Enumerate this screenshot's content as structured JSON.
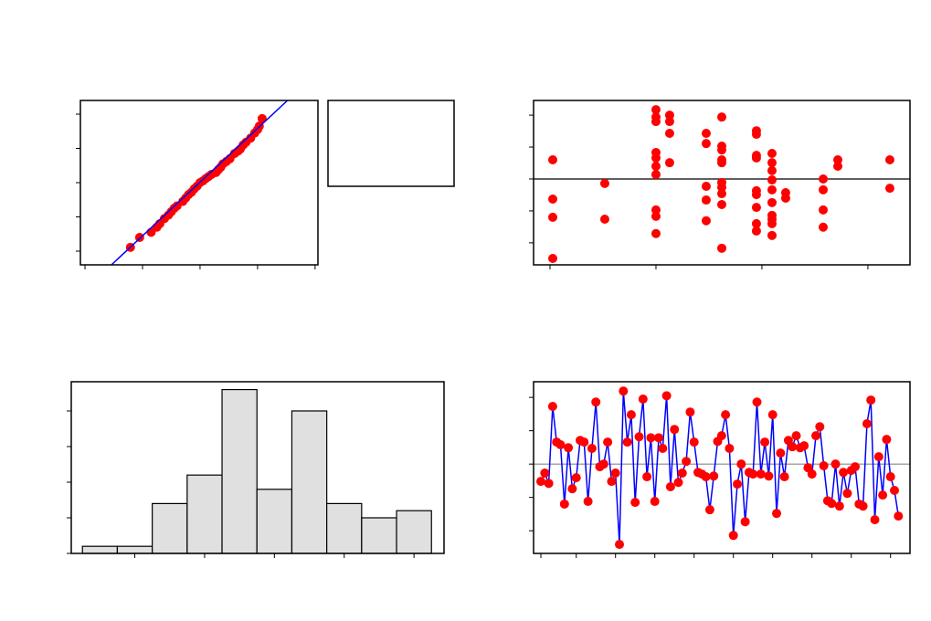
{
  "chart_data": [
    {
      "type": "scatter",
      "xlim": [
        -2.08,
        2.05
      ],
      "ylim": [
        -2.4,
        2.4
      ],
      "xticks": [
        -2,
        -1,
        0,
        1,
        2
      ],
      "yticks": [
        -2,
        -1,
        0,
        1,
        2
      ],
      "series": [
        {
          "color": "#ff0000",
          "style": "points",
          "x": [
            -1.21,
            -1.05,
            -0.85,
            -0.75,
            -0.7,
            -0.62,
            -0.55,
            -0.5,
            -0.45,
            -0.4,
            -0.3,
            -0.25,
            -0.2,
            -0.15,
            -0.1,
            -0.05,
            0,
            0.05,
            0.1,
            0.15,
            0.2,
            0.28,
            0.32,
            0.36,
            0.4,
            0.46,
            0.52,
            0.6,
            0.66,
            0.7,
            0.75,
            0.8,
            0.88,
            0.95,
            1.0,
            1.03,
            1.08
          ],
          "values": [
            -1.89,
            -1.6,
            -1.45,
            -1.3,
            -1.2,
            -1.05,
            -0.95,
            -0.85,
            -0.75,
            -0.68,
            -0.55,
            -0.45,
            -0.35,
            -0.28,
            -0.18,
            -0.1,
            0,
            0.05,
            0.12,
            0.18,
            0.24,
            0.3,
            0.38,
            0.45,
            0.55,
            0.62,
            0.7,
            0.85,
            0.92,
            0.98,
            1.1,
            1.18,
            1.3,
            1.45,
            1.55,
            1.65,
            1.87
          ]
        },
        {
          "color": "#0000ff",
          "style": "line",
          "x": [
            -1.54,
            1.52
          ],
          "values": [
            -2.4,
            2.4
          ]
        }
      ]
    },
    {
      "type": "scatter",
      "xlim": [
        8.45,
        43.97
      ],
      "ylim": [
        -2.69,
        2.46
      ],
      "xticks": [
        10,
        20,
        30,
        40
      ],
      "yticks": [
        -2,
        -1,
        0,
        1,
        2
      ],
      "refline": 0,
      "refline_color": "#000000",
      "series": [
        {
          "color": "#ff0000",
          "style": "points",
          "x": [
            10.26,
            10.26,
            10.26,
            10.26,
            15.17,
            15.17,
            20,
            20,
            20,
            20,
            20,
            20,
            20,
            20,
            20,
            20,
            21.29,
            21.29,
            21.29,
            21.29,
            24.74,
            24.74,
            24.74,
            24.74,
            24.74,
            26.21,
            26.21,
            26.21,
            26.21,
            26.21,
            26.21,
            26.21,
            26.21,
            26.21,
            26.21,
            29.48,
            29.48,
            29.48,
            29.48,
            29.48,
            29.48,
            29.48,
            29.48,
            29.48,
            30.95,
            30.95,
            30.95,
            30.95,
            30.95,
            30.95,
            30.95,
            30.95,
            30.95,
            30.95,
            32.24,
            32.24,
            35.78,
            35.78,
            35.78,
            35.78,
            37.16,
            37.16,
            42.07,
            42.07
          ],
          "values": [
            0.6,
            -0.63,
            -1.2,
            -2.49,
            -0.14,
            -1.26,
            2.17,
            1.94,
            1.8,
            0.83,
            0.66,
            0.4,
            0.14,
            -0.97,
            -1.17,
            -1.71,
            2.0,
            1.8,
            1.43,
            0.51,
            1.43,
            1.11,
            -0.23,
            -0.66,
            -1.31,
            1.94,
            1.03,
            0.91,
            0.6,
            0.51,
            -0.11,
            -0.26,
            -0.46,
            -0.8,
            -2.17,
            1.51,
            1.4,
            0.74,
            0.66,
            -0.37,
            -0.49,
            -0.89,
            -1.4,
            -1.63,
            0.8,
            0.51,
            0.26,
            -0.03,
            -0.34,
            -0.74,
            -1.14,
            -1.26,
            -1.4,
            -1.77,
            -0.43,
            -0.6,
            0,
            -0.34,
            -0.97,
            -1.51,
            0.6,
            0.4,
            0.6,
            -0.29
          ]
        }
      ]
    },
    {
      "type": "histogram",
      "xlim": [
        -2.41,
        2.93
      ],
      "ylim": [
        0,
        24.1
      ],
      "xticks": [
        -1.5,
        -0.5,
        0.5,
        1.5,
        2.5
      ],
      "yticks": [
        0,
        5,
        10,
        15,
        20
      ],
      "bins": [
        -2.25,
        -1.75,
        -1.25,
        -0.75,
        -0.25,
        0.25,
        0.75,
        1.25,
        1.75,
        2.25,
        2.75
      ],
      "values": [
        1,
        1,
        7,
        11,
        23,
        9,
        20,
        7,
        5,
        6
      ],
      "color": "#e0e0e0"
    },
    {
      "type": "line",
      "xlim": [
        -0.86,
        94.95
      ],
      "ylim": [
        -2.68,
        2.47
      ],
      "xticks": [
        1,
        10,
        20,
        30,
        40,
        50,
        60,
        70,
        80,
        90
      ],
      "yticks": [
        -2,
        -1,
        0,
        1,
        2
      ],
      "refline": 0,
      "refline_color": "#888888",
      "series": [
        {
          "color": "#0000ff",
          "marker_color": "#ff0000",
          "x": [
            1,
            2,
            3,
            4,
            5,
            6,
            7,
            8,
            9,
            10,
            11,
            12,
            13,
            14,
            15,
            16,
            17,
            18,
            19,
            20,
            21,
            22,
            23,
            24,
            25,
            26,
            27,
            28,
            29,
            30,
            31,
            32,
            33,
            34,
            35,
            36,
            37,
            38,
            39,
            40,
            41,
            42,
            43,
            44,
            45,
            46,
            47,
            48,
            49,
            50,
            51,
            52,
            53,
            54,
            55,
            56,
            57,
            58,
            59,
            60,
            61,
            62,
            63,
            64,
            65,
            66,
            67,
            68,
            69,
            70,
            71,
            72,
            73,
            74,
            75,
            76,
            77,
            78,
            79,
            80,
            81,
            82,
            83,
            84,
            85,
            86,
            87,
            88,
            89,
            90,
            91,
            92
          ],
          "values": [
            -0.52,
            -0.27,
            -0.58,
            1.73,
            0.66,
            0.58,
            -1.2,
            0.49,
            -0.74,
            -0.41,
            0.71,
            0.66,
            -1.12,
            0.47,
            1.86,
            -0.08,
            0,
            0.66,
            -0.52,
            -0.27,
            -2.41,
            2.19,
            0.66,
            1.48,
            -1.15,
            0.82,
            1.95,
            -0.38,
            0.79,
            -1.12,
            0.79,
            0.47,
            2.05,
            -0.68,
            1.04,
            -0.55,
            -0.27,
            0.08,
            1.56,
            0.66,
            -0.25,
            -0.3,
            -0.38,
            -1.37,
            -0.36,
            0.68,
            0.85,
            1.48,
            0.47,
            -2.14,
            -0.6,
            0,
            -1.73,
            -0.25,
            -0.3,
            1.86,
            -0.3,
            0.66,
            -0.36,
            1.48,
            -1.48,
            0.33,
            -0.38,
            0.71,
            0.52,
            0.85,
            0.49,
            0.55,
            -0.11,
            -0.3,
            0.85,
            1.12,
            -0.05,
            -1.1,
            -1.18,
            0,
            -1.26,
            -0.25,
            -0.88,
            -0.19,
            -0.08,
            -1.2,
            -1.26,
            1.21,
            1.92,
            -1.67,
            0.22,
            -0.93,
            0.74,
            -0.38,
            -0.79,
            -1.56
          ]
        }
      ]
    }
  ]
}
